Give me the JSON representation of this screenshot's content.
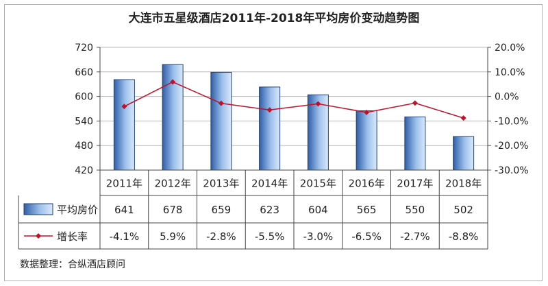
{
  "chart_data": {
    "type": "bar",
    "title": "大连市五星级酒店2011年-2018年平均房价变动趋势图",
    "categories": [
      "2011年",
      "2012年",
      "2013年",
      "2014年",
      "2015年",
      "2016年",
      "2017年",
      "2018年"
    ],
    "series": [
      {
        "name": "平均房价",
        "type": "bar",
        "axis": "left",
        "values": [
          641,
          678,
          659,
          623,
          604,
          565,
          550,
          502
        ],
        "labels": [
          "641",
          "678",
          "659",
          "623",
          "604",
          "565",
          "550",
          "502"
        ],
        "color": "#4f7fc4"
      },
      {
        "name": "增长率",
        "type": "line",
        "axis": "right",
        "values": [
          -4.1,
          5.9,
          -2.8,
          -5.5,
          -3.0,
          -6.5,
          -2.7,
          -8.8
        ],
        "labels": [
          "-4.1%",
          "5.9%",
          "-2.8%",
          "-5.5%",
          "-3.0%",
          "-6.5%",
          "-2.7%",
          "-8.8%"
        ],
        "color": "#c0102a"
      }
    ],
    "y_left": {
      "min": 420,
      "max": 720,
      "ticks": [
        "720",
        "660",
        "600",
        "540",
        "480",
        "420"
      ]
    },
    "y_right": {
      "min": -30,
      "max": 20,
      "ticks": [
        "20.0%",
        "10.0%",
        "0.0%",
        "-10.0%",
        "-20.0%",
        "-30.0%"
      ]
    },
    "grid": "horizontal",
    "legend": "data-table",
    "source_note": "数据整理：合纵酒店顾问"
  }
}
